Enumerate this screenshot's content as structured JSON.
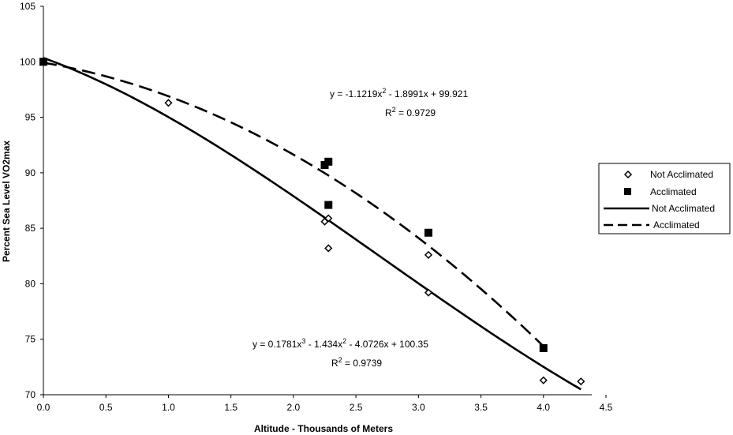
{
  "chart_data": {
    "type": "scatter",
    "xlabel": "Altitude - Thousands of Meters",
    "ylabel": "Percent Sea Level VO2max",
    "xlim": [
      0,
      4.5
    ],
    "ylim": [
      70,
      105
    ],
    "x_ticks": [
      "0.0",
      "0.5",
      "1.0",
      "1.5",
      "2.0",
      "2.5",
      "3.0",
      "3.5",
      "4.0",
      "4.5"
    ],
    "y_ticks": [
      "70",
      "75",
      "80",
      "85",
      "90",
      "95",
      "100",
      "105"
    ],
    "grid": false,
    "legend_position": "right",
    "series": [
      {
        "name": "Not Acclimated",
        "kind": "points",
        "marker": "diamond-open",
        "x": [
          0.0,
          1.0,
          2.25,
          2.28,
          2.28,
          3.08,
          3.08,
          4.0,
          4.3
        ],
        "y": [
          100.0,
          96.3,
          85.6,
          85.9,
          83.2,
          82.6,
          79.2,
          71.3,
          71.2
        ]
      },
      {
        "name": "Acclimated",
        "kind": "points",
        "marker": "square-filled",
        "x": [
          0.0,
          2.25,
          2.28,
          2.28,
          3.08,
          4.0
        ],
        "y": [
          100.0,
          90.7,
          91.0,
          87.1,
          84.6,
          74.2
        ]
      },
      {
        "name": "Not Acclimated",
        "kind": "trendline",
        "style": "solid",
        "coefficients": [
          0.1781,
          -1.434,
          -4.0726,
          100.35
        ],
        "x_range": [
          0.0,
          4.3
        ]
      },
      {
        "name": "Acclimated",
        "kind": "trendline",
        "style": "dashed",
        "coefficients": [
          -1.1219,
          -1.8991,
          99.921
        ],
        "x_range": [
          0.0,
          4.0
        ]
      }
    ],
    "annotations": {
      "acclimated_eq": {
        "prefix": "y = -1.1219x",
        "sup": "2",
        "suffix": " - 1.8991x + 99.921"
      },
      "acclimated_r2": {
        "prefix": "R",
        "sup": "2",
        "suffix": " = 0.9729"
      },
      "not_acclimated_eq": {
        "p1": "y = 0.1781x",
        "s1": "3",
        "p2": " - 1.434x",
        "s2": "2",
        "p3": " - 4.0726x + 100.35"
      },
      "not_acclimated_r2": {
        "prefix": "R",
        "sup": "2",
        "suffix": " = 0.9739"
      }
    },
    "legend": [
      "Not  Acclimated",
      "Acclimated",
      "Not Acclimated",
      "Acclimated"
    ]
  }
}
